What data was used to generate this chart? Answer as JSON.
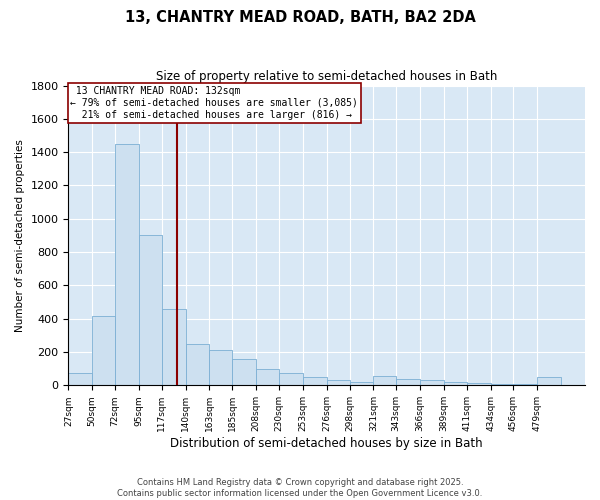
{
  "title": "13, CHANTRY MEAD ROAD, BATH, BA2 2DA",
  "subtitle": "Size of property relative to semi-detached houses in Bath",
  "xlabel": "Distribution of semi-detached houses by size in Bath",
  "ylabel": "Number of semi-detached properties",
  "property_size": 132,
  "property_label": "13 CHANTRY MEAD ROAD: 132sqm",
  "pct_smaller": 79,
  "count_smaller": 3085,
  "pct_larger": 21,
  "count_larger": 816,
  "bin_labels": [
    "27sqm",
    "50sqm",
    "72sqm",
    "95sqm",
    "117sqm",
    "140sqm",
    "163sqm",
    "185sqm",
    "208sqm",
    "230sqm",
    "253sqm",
    "276sqm",
    "298sqm",
    "321sqm",
    "343sqm",
    "366sqm",
    "389sqm",
    "411sqm",
    "434sqm",
    "456sqm",
    "479sqm"
  ],
  "bin_edges": [
    27,
    50,
    72,
    95,
    117,
    140,
    163,
    185,
    208,
    230,
    253,
    276,
    298,
    321,
    343,
    366,
    389,
    411,
    434,
    456,
    479,
    502
  ],
  "bar_values": [
    75,
    415,
    1450,
    900,
    460,
    250,
    215,
    160,
    100,
    75,
    50,
    30,
    20,
    55,
    40,
    30,
    20,
    15,
    10,
    10,
    50
  ],
  "bar_color": "#cde0f0",
  "bar_edge_color": "#7bafd4",
  "vline_color": "#8b0000",
  "vline_x": 132,
  "annotation_box_color": "#8b0000",
  "background_color": "#d9e8f5",
  "ylim": [
    0,
    1800
  ],
  "yticks": [
    0,
    200,
    400,
    600,
    800,
    1000,
    1200,
    1400,
    1600,
    1800
  ],
  "footer_line1": "Contains HM Land Registry data © Crown copyright and database right 2025.",
  "footer_line2": "Contains public sector information licensed under the Open Government Licence v3.0."
}
